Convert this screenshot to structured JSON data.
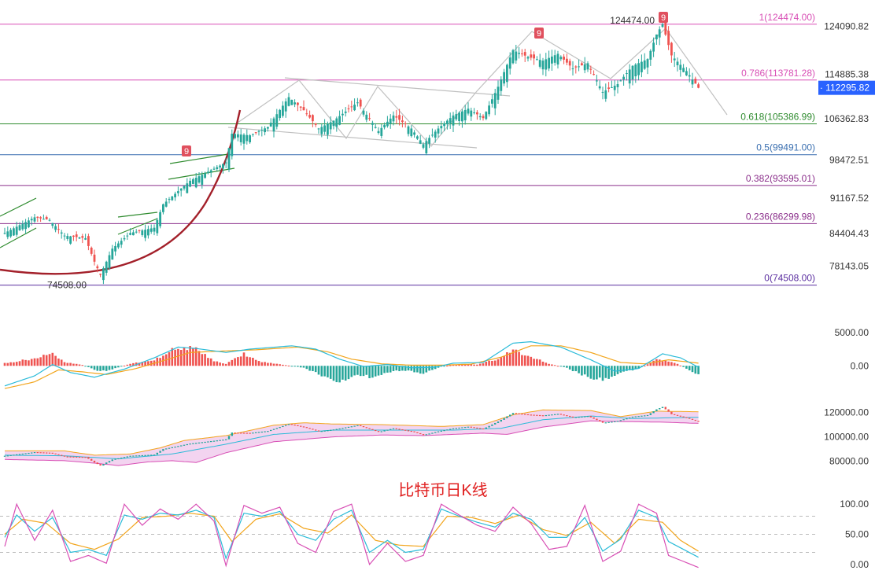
{
  "colors": {
    "up": "#26a69a",
    "down": "#ef5350",
    "fib_top": "#d84fb5",
    "fib_786": "#d84fb5",
    "fib_618": "#2e8b2e",
    "fib_5": "#3a6fb0",
    "fib_382": "#8b2f8b",
    "fib_236": "#8b2f8b",
    "fib_0": "#5b2fa0",
    "curve": "#a3202a",
    "channel": "#c0c0c0",
    "macd_dif": "#2bbbd8",
    "macd_dea": "#f2a51c",
    "boll_fill": "#f3d4f0",
    "kdj_k": "#2bbbd8",
    "kdj_d": "#f2a51c",
    "kdj_j": "#d84fb5",
    "price_tag": "#2962ff",
    "td_badge": "#e0505e"
  },
  "chart_data": [
    {
      "type": "candlestick",
      "name": "price",
      "price_axis_ticks": [
        "124090.82",
        "114885.38",
        "106362.83",
        "98472.51",
        "91167.52",
        "84404.43",
        "78143.05"
      ],
      "price_axis_values": [
        124090.82,
        114885.38,
        106362.83,
        98472.51,
        91167.52,
        84404.43,
        78143.05
      ],
      "ylim": [
        72500,
        127000
      ],
      "current_price": 112295.82,
      "current_price_label": "112295.82",
      "high_label": "124474.00",
      "low_label": "74508.00",
      "fib_levels": [
        {
          "label": "1(124474.00)",
          "value": 124474.0,
          "color_key": "fib_top"
        },
        {
          "label": "0.786(113781.28)",
          "value": 113781.28,
          "color_key": "fib_786"
        },
        {
          "label": "0.618(105386.99)",
          "value": 105386.99,
          "color_key": "fib_618"
        },
        {
          "label": "0.5(99491.00)",
          "value": 99491.0,
          "color_key": "fib_5"
        },
        {
          "label": "0.382(93595.01)",
          "value": 93595.01,
          "color_key": "fib_382"
        },
        {
          "label": "0.236(86299.98)",
          "value": 86299.98,
          "color_key": "fib_236"
        },
        {
          "label": "0(74508.00)",
          "value": 74508.0,
          "color_key": "fib_0"
        }
      ],
      "td_count_badges": [
        "9",
        "9",
        "9"
      ],
      "anchors": [
        [
          0,
          84500
        ],
        [
          10,
          87500
        ],
        [
          15,
          87000
        ],
        [
          20,
          84000
        ],
        [
          27,
          83500
        ],
        [
          30,
          79000
        ],
        [
          32,
          76500
        ],
        [
          36,
          81500
        ],
        [
          42,
          84500
        ],
        [
          50,
          85500
        ],
        [
          53,
          90000
        ],
        [
          62,
          94500
        ],
        [
          70,
          96800
        ],
        [
          74,
          98000
        ],
        [
          76,
          103500
        ],
        [
          82,
          103200
        ],
        [
          88,
          104800
        ],
        [
          95,
          110500
        ],
        [
          100,
          108000
        ],
        [
          105,
          104500
        ],
        [
          110,
          106000
        ],
        [
          118,
          109500
        ],
        [
          125,
          104000
        ],
        [
          130,
          107000
        ],
        [
          136,
          104500
        ],
        [
          140,
          101500
        ],
        [
          145,
          104500
        ],
        [
          150,
          107000
        ],
        [
          155,
          108300
        ],
        [
          160,
          106500
        ],
        [
          165,
          112500
        ],
        [
          170,
          119500
        ],
        [
          175,
          118200
        ],
        [
          180,
          117500
        ],
        [
          185,
          118800
        ],
        [
          190,
          116000
        ],
        [
          195,
          117000
        ],
        [
          200,
          111500
        ],
        [
          205,
          113000
        ],
        [
          210,
          116500
        ],
        [
          215,
          117800
        ],
        [
          218,
          122500
        ],
        [
          220,
          124474
        ],
        [
          223,
          118500
        ],
        [
          228,
          115500
        ],
        [
          232,
          112295.82
        ]
      ]
    },
    {
      "type": "macd",
      "name": "macd",
      "axis_ticks": [
        "5000.00",
        "0.00"
      ],
      "axis_values": [
        5000,
        0
      ],
      "ylim": [
        -3500,
        6500
      ],
      "hist_anchors": [
        [
          0,
          400
        ],
        [
          10,
          1100
        ],
        [
          16,
          1800
        ],
        [
          20,
          500
        ],
        [
          26,
          150
        ],
        [
          32,
          -900
        ],
        [
          36,
          -500
        ],
        [
          42,
          300
        ],
        [
          50,
          900
        ],
        [
          58,
          2800
        ],
        [
          64,
          2500
        ],
        [
          70,
          700
        ],
        [
          74,
          300
        ],
        [
          80,
          1800
        ],
        [
          86,
          600
        ],
        [
          92,
          250
        ],
        [
          100,
          -300
        ],
        [
          106,
          -1400
        ],
        [
          112,
          -2300
        ],
        [
          118,
          -1300
        ],
        [
          124,
          -1800
        ],
        [
          130,
          -700
        ],
        [
          136,
          -800
        ],
        [
          140,
          -1200
        ],
        [
          146,
          -100
        ],
        [
          152,
          250
        ],
        [
          158,
          200
        ],
        [
          164,
          900
        ],
        [
          170,
          2300
        ],
        [
          176,
          1400
        ],
        [
          182,
          300
        ],
        [
          188,
          -300
        ],
        [
          194,
          -1500
        ],
        [
          200,
          -2100
        ],
        [
          206,
          -1000
        ],
        [
          212,
          -400
        ],
        [
          218,
          900
        ],
        [
          224,
          500
        ],
        [
          232,
          -1300
        ]
      ],
      "dif_anchors": [
        [
          0,
          -3000
        ],
        [
          10,
          -1500
        ],
        [
          16,
          200
        ],
        [
          22,
          -1000
        ],
        [
          30,
          -1700
        ],
        [
          40,
          -500
        ],
        [
          50,
          1200
        ],
        [
          58,
          2800
        ],
        [
          64,
          2600
        ],
        [
          74,
          2000
        ],
        [
          82,
          2500
        ],
        [
          96,
          3000
        ],
        [
          104,
          2500
        ],
        [
          112,
          1000
        ],
        [
          120,
          -100
        ],
        [
          128,
          200
        ],
        [
          136,
          -300
        ],
        [
          144,
          -200
        ],
        [
          150,
          400
        ],
        [
          160,
          500
        ],
        [
          170,
          3400
        ],
        [
          176,
          3600
        ],
        [
          186,
          2800
        ],
        [
          196,
          900
        ],
        [
          204,
          -800
        ],
        [
          212,
          -400
        ],
        [
          220,
          1800
        ],
        [
          226,
          1200
        ],
        [
          232,
          -200
        ]
      ],
      "dea_anchors": [
        [
          0,
          -3400
        ],
        [
          10,
          -2400
        ],
        [
          18,
          -600
        ],
        [
          26,
          -900
        ],
        [
          34,
          -1300
        ],
        [
          44,
          -400
        ],
        [
          54,
          900
        ],
        [
          62,
          2000
        ],
        [
          72,
          2200
        ],
        [
          84,
          2400
        ],
        [
          98,
          2800
        ],
        [
          108,
          2100
        ],
        [
          116,
          1000
        ],
        [
          126,
          300
        ],
        [
          136,
          100
        ],
        [
          146,
          100
        ],
        [
          156,
          250
        ],
        [
          166,
          1300
        ],
        [
          176,
          3000
        ],
        [
          186,
          3000
        ],
        [
          196,
          2000
        ],
        [
          206,
          500
        ],
        [
          214,
          300
        ],
        [
          222,
          900
        ],
        [
          232,
          400
        ]
      ]
    },
    {
      "type": "bollinger",
      "name": "boll",
      "axis_ticks": [
        "120000.00",
        "100000.00",
        "80000.00"
      ],
      "axis_values": [
        120000,
        100000,
        80000
      ],
      "ylim": [
        74000,
        128000
      ],
      "upper_anchors": [
        [
          0,
          88500
        ],
        [
          20,
          88500
        ],
        [
          30,
          85000
        ],
        [
          42,
          86000
        ],
        [
          52,
          91000
        ],
        [
          60,
          97000
        ],
        [
          74,
          101000
        ],
        [
          90,
          109500
        ],
        [
          100,
          111500
        ],
        [
          110,
          110500
        ],
        [
          126,
          110000
        ],
        [
          146,
          108500
        ],
        [
          160,
          110000
        ],
        [
          170,
          118000
        ],
        [
          180,
          122000
        ],
        [
          196,
          121500
        ],
        [
          206,
          116500
        ],
        [
          218,
          121000
        ],
        [
          232,
          120500
        ]
      ],
      "lower_anchors": [
        [
          0,
          81500
        ],
        [
          20,
          80500
        ],
        [
          30,
          78500
        ],
        [
          38,
          76500
        ],
        [
          48,
          79500
        ],
        [
          56,
          80500
        ],
        [
          64,
          79000
        ],
        [
          74,
          87000
        ],
        [
          90,
          96000
        ],
        [
          110,
          100000
        ],
        [
          126,
          101500
        ],
        [
          140,
          101000
        ],
        [
          160,
          103000
        ],
        [
          168,
          102000
        ],
        [
          180,
          108000
        ],
        [
          196,
          113000
        ],
        [
          206,
          112500
        ],
        [
          220,
          112000
        ],
        [
          232,
          111000
        ]
      ],
      "mid_anchors": [
        [
          0,
          85000
        ],
        [
          20,
          84500
        ],
        [
          38,
          82000
        ],
        [
          56,
          86000
        ],
        [
          74,
          94000
        ],
        [
          90,
          102000
        ],
        [
          110,
          105500
        ],
        [
          130,
          105500
        ],
        [
          150,
          105500
        ],
        [
          166,
          107000
        ],
        [
          180,
          114000
        ],
        [
          196,
          117000
        ],
        [
          210,
          115000
        ],
        [
          232,
          116000
        ]
      ]
    },
    {
      "type": "kdj",
      "name": "kdj",
      "axis_ticks": [
        "100.00",
        "50.00",
        "0.00"
      ],
      "axis_values": [
        100,
        50,
        0
      ],
      "ylim": [
        -8,
        112
      ],
      "guide_levels": [
        80,
        50,
        20
      ],
      "k_anchors": [
        [
          0,
          45
        ],
        [
          4,
          82
        ],
        [
          10,
          55
        ],
        [
          16,
          78
        ],
        [
          22,
          20
        ],
        [
          28,
          25
        ],
        [
          34,
          15
        ],
        [
          40,
          82
        ],
        [
          46,
          75
        ],
        [
          52,
          85
        ],
        [
          58,
          82
        ],
        [
          64,
          90
        ],
        [
          70,
          78
        ],
        [
          74,
          10
        ],
        [
          80,
          85
        ],
        [
          86,
          80
        ],
        [
          92,
          88
        ],
        [
          98,
          50
        ],
        [
          104,
          40
        ],
        [
          110,
          75
        ],
        [
          116,
          90
        ],
        [
          122,
          20
        ],
        [
          128,
          40
        ],
        [
          134,
          20
        ],
        [
          140,
          25
        ],
        [
          146,
          92
        ],
        [
          152,
          80
        ],
        [
          158,
          70
        ],
        [
          164,
          62
        ],
        [
          170,
          85
        ],
        [
          176,
          75
        ],
        [
          182,
          45
        ],
        [
          188,
          45
        ],
        [
          194,
          78
        ],
        [
          200,
          22
        ],
        [
          206,
          42
        ],
        [
          212,
          90
        ],
        [
          218,
          78
        ],
        [
          222,
          38
        ],
        [
          232,
          12
        ]
      ],
      "d_anchors": [
        [
          0,
          50
        ],
        [
          6,
          75
        ],
        [
          14,
          68
        ],
        [
          22,
          35
        ],
        [
          30,
          25
        ],
        [
          38,
          42
        ],
        [
          46,
          78
        ],
        [
          54,
          80
        ],
        [
          62,
          85
        ],
        [
          70,
          80
        ],
        [
          76,
          38
        ],
        [
          84,
          75
        ],
        [
          92,
          84
        ],
        [
          100,
          60
        ],
        [
          108,
          52
        ],
        [
          116,
          82
        ],
        [
          124,
          40
        ],
        [
          132,
          32
        ],
        [
          140,
          30
        ],
        [
          148,
          80
        ],
        [
          156,
          78
        ],
        [
          164,
          68
        ],
        [
          172,
          82
        ],
        [
          180,
          58
        ],
        [
          188,
          48
        ],
        [
          196,
          70
        ],
        [
          204,
          35
        ],
        [
          212,
          75
        ],
        [
          220,
          70
        ],
        [
          226,
          40
        ],
        [
          232,
          22
        ]
      ],
      "j_anchors": [
        [
          0,
          30
        ],
        [
          4,
          100
        ],
        [
          10,
          40
        ],
        [
          16,
          90
        ],
        [
          22,
          5
        ],
        [
          28,
          15
        ],
        [
          34,
          2
        ],
        [
          40,
          100
        ],
        [
          46,
          65
        ],
        [
          52,
          92
        ],
        [
          58,
          75
        ],
        [
          64,
          100
        ],
        [
          70,
          72
        ],
        [
          74,
          -2
        ],
        [
          80,
          98
        ],
        [
          86,
          85
        ],
        [
          92,
          95
        ],
        [
          98,
          35
        ],
        [
          104,
          20
        ],
        [
          110,
          88
        ],
        [
          116,
          100
        ],
        [
          122,
          0
        ],
        [
          128,
          35
        ],
        [
          134,
          5
        ],
        [
          140,
          15
        ],
        [
          146,
          100
        ],
        [
          152,
          82
        ],
        [
          158,
          65
        ],
        [
          164,
          55
        ],
        [
          170,
          95
        ],
        [
          176,
          68
        ],
        [
          182,
          25
        ],
        [
          188,
          30
        ],
        [
          194,
          98
        ],
        [
          200,
          5
        ],
        [
          206,
          22
        ],
        [
          212,
          100
        ],
        [
          218,
          85
        ],
        [
          222,
          15
        ],
        [
          232,
          -5
        ]
      ]
    }
  ],
  "annotation": "比特币日K线"
}
